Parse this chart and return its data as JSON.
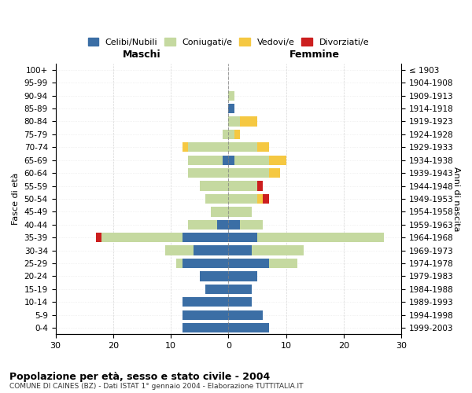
{
  "age_groups": [
    "0-4",
    "5-9",
    "10-14",
    "15-19",
    "20-24",
    "25-29",
    "30-34",
    "35-39",
    "40-44",
    "45-49",
    "50-54",
    "55-59",
    "60-64",
    "65-69",
    "70-74",
    "75-79",
    "80-84",
    "85-89",
    "90-94",
    "95-99",
    "100+"
  ],
  "birth_years": [
    "1999-2003",
    "1994-1998",
    "1989-1993",
    "1984-1988",
    "1979-1983",
    "1974-1978",
    "1969-1973",
    "1964-1968",
    "1959-1963",
    "1954-1958",
    "1949-1953",
    "1944-1948",
    "1939-1943",
    "1934-1938",
    "1929-1933",
    "1924-1928",
    "1919-1923",
    "1914-1918",
    "1909-1913",
    "1904-1908",
    "≤ 1903"
  ],
  "colors": {
    "celibi": "#3B6EA5",
    "coniugati": "#C5D9A0",
    "vedovi": "#F5C842",
    "divorziati": "#CC1F1F"
  },
  "maschi": {
    "celibi": [
      8,
      8,
      8,
      4,
      5,
      8,
      6,
      8,
      2,
      0,
      0,
      0,
      0,
      1,
      0,
      0,
      0,
      0,
      0,
      0,
      0
    ],
    "coniugati": [
      0,
      0,
      0,
      0,
      0,
      1,
      5,
      14,
      5,
      3,
      4,
      5,
      7,
      6,
      7,
      1,
      0,
      0,
      0,
      0,
      0
    ],
    "vedovi": [
      0,
      0,
      0,
      0,
      0,
      0,
      0,
      0,
      0,
      0,
      0,
      0,
      0,
      0,
      1,
      0,
      0,
      0,
      0,
      0,
      0
    ],
    "divorziati": [
      0,
      0,
      0,
      0,
      0,
      0,
      0,
      1,
      0,
      0,
      0,
      0,
      0,
      0,
      0,
      0,
      0,
      0,
      0,
      0,
      0
    ]
  },
  "femmine": {
    "celibi": [
      7,
      6,
      4,
      4,
      5,
      7,
      4,
      5,
      2,
      0,
      0,
      0,
      0,
      1,
      0,
      0,
      0,
      1,
      0,
      0,
      0
    ],
    "coniugati": [
      0,
      0,
      0,
      0,
      0,
      5,
      9,
      22,
      4,
      4,
      5,
      5,
      7,
      6,
      5,
      1,
      2,
      0,
      1,
      0,
      0
    ],
    "vedovi": [
      0,
      0,
      0,
      0,
      0,
      0,
      0,
      0,
      0,
      0,
      1,
      0,
      2,
      3,
      2,
      1,
      3,
      0,
      0,
      0,
      0
    ],
    "divorziati": [
      0,
      0,
      0,
      0,
      0,
      0,
      0,
      0,
      0,
      0,
      1,
      1,
      0,
      0,
      0,
      0,
      0,
      0,
      0,
      0,
      0
    ]
  },
  "xlim": 30,
  "title": "Popolazione per età, sesso e stato civile - 2004",
  "subtitle": "COMUNE DI CAINES (BZ) - Dati ISTAT 1° gennaio 2004 - Elaborazione TUTTITALIA.IT",
  "ylabel_left": "Fasce di età",
  "ylabel_right": "Anni di nascita",
  "xlabel_left": "Maschi",
  "xlabel_right": "Femmine",
  "legend_labels": [
    "Celibi/Nubili",
    "Coniugati/e",
    "Vedovi/e",
    "Divorziati/e"
  ],
  "bg_color": "#ffffff",
  "grid_color": "#cccccc"
}
